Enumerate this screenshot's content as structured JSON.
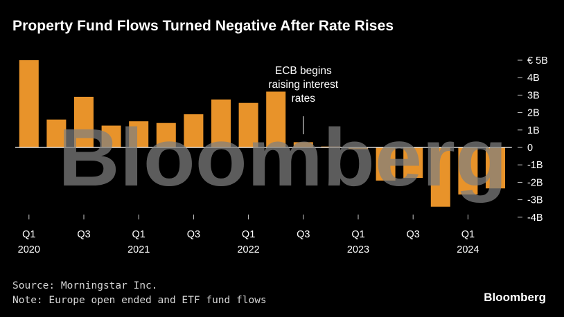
{
  "title": "Property Fund Flows Turned Negative After Rate Rises",
  "source": "Source: Morningstar Inc.",
  "note": "Note: Europe open ended and ETF fund flows",
  "brand": "Bloomberg",
  "watermark": "Bloomberg",
  "colors": {
    "bar": "#e8932a",
    "background": "#000000",
    "text": "#ffffff",
    "watermark": "#808080"
  },
  "chart_data": {
    "type": "bar",
    "title": "Property Fund Flows Turned Negative After Rate Rises",
    "xlabel": "",
    "ylabel": "",
    "unit": "€ billions",
    "ylim": [
      -4,
      5
    ],
    "categories": [
      "Q1 2020",
      "Q2 2020",
      "Q3 2020",
      "Q4 2020",
      "Q1 2021",
      "Q2 2021",
      "Q3 2021",
      "Q4 2021",
      "Q1 2022",
      "Q2 2022",
      "Q3 2022",
      "Q4 2022",
      "Q1 2023",
      "Q2 2023",
      "Q3 2023",
      "Q4 2023",
      "Q1 2024",
      "Q2 2024"
    ],
    "values": [
      5.0,
      1.6,
      2.9,
      1.25,
      1.5,
      1.4,
      1.9,
      2.75,
      2.55,
      3.2,
      0.3,
      0.05,
      -0.1,
      -1.9,
      -1.75,
      -3.4,
      -2.7,
      -2.35
    ],
    "x_tick_labels": [
      {
        "index": 0,
        "quarter": "Q1",
        "year": "2020"
      },
      {
        "index": 2,
        "quarter": "Q3",
        "year": ""
      },
      {
        "index": 4,
        "quarter": "Q1",
        "year": "2021"
      },
      {
        "index": 6,
        "quarter": "Q3",
        "year": ""
      },
      {
        "index": 8,
        "quarter": "Q1",
        "year": "2022"
      },
      {
        "index": 10,
        "quarter": "Q3",
        "year": ""
      },
      {
        "index": 12,
        "quarter": "Q1",
        "year": "2023"
      },
      {
        "index": 14,
        "quarter": "Q3",
        "year": ""
      },
      {
        "index": 16,
        "quarter": "Q1",
        "year": "2024"
      }
    ],
    "y_ticks": [
      {
        "value": 5,
        "label": "€ 5B"
      },
      {
        "value": 4,
        "label": "4B"
      },
      {
        "value": 3,
        "label": "3B"
      },
      {
        "value": 2,
        "label": "2B"
      },
      {
        "value": 1,
        "label": "1B"
      },
      {
        "value": 0,
        "label": "0"
      },
      {
        "value": -1,
        "label": "-1B"
      },
      {
        "value": -2,
        "label": "-2B"
      },
      {
        "value": -3,
        "label": "-3B"
      },
      {
        "value": -4,
        "label": "-4B"
      }
    ],
    "annotation": {
      "index": 10,
      "lines": [
        "ECB begins",
        "raising interest",
        "rates"
      ]
    },
    "grid": false,
    "legend": "none"
  }
}
